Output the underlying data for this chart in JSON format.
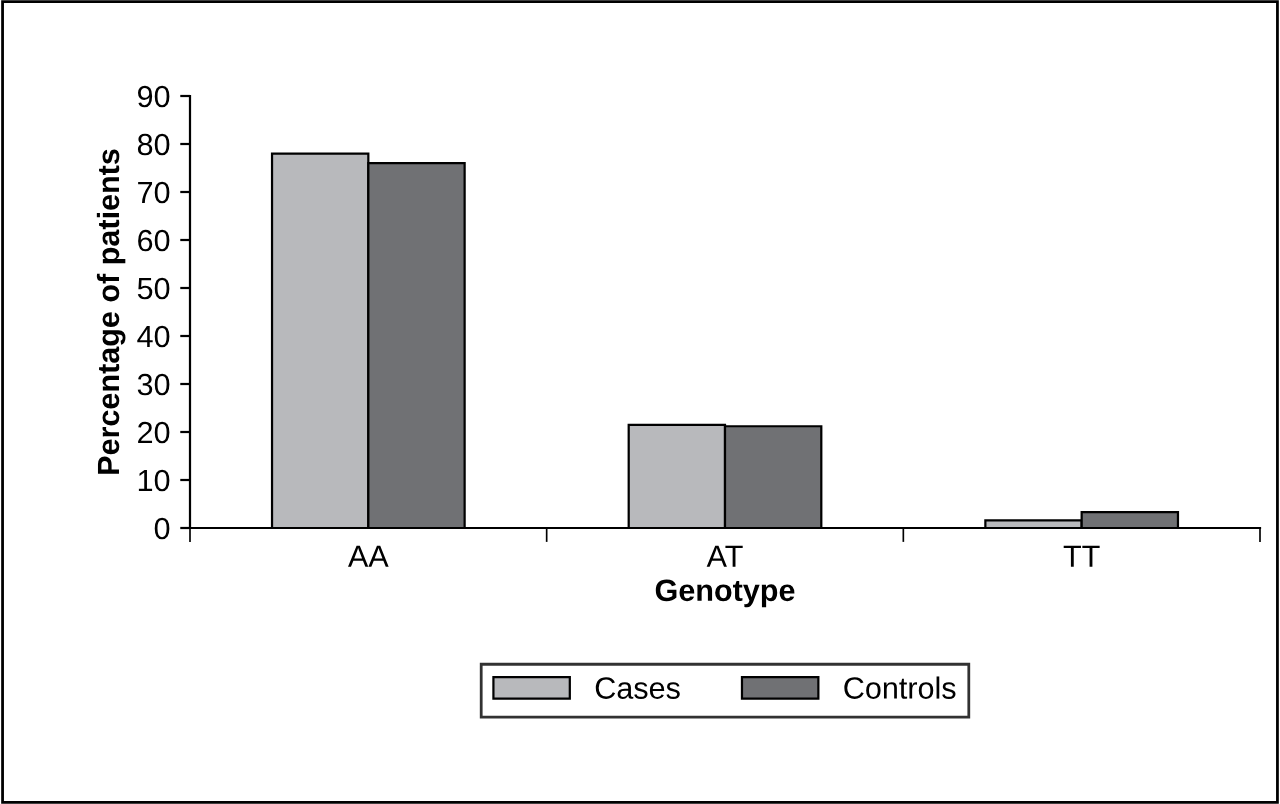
{
  "chart_data": {
    "type": "bar",
    "xlabel": "Genotype",
    "ylabel": "Percentage of patients",
    "categories": [
      "AA",
      "AT",
      "TT"
    ],
    "series": [
      {
        "name": "Cases",
        "color": "#b8b9bc",
        "values": [
          78,
          21.5,
          1.6
        ]
      },
      {
        "name": "Controls",
        "color": "#707174",
        "values": [
          76,
          21.2,
          3.3
        ]
      }
    ],
    "ylim": [
      0,
      90
    ],
    "yticks": [
      0,
      10,
      20,
      30,
      40,
      50,
      60,
      70,
      80,
      90
    ],
    "grid": false,
    "legend": "bottom"
  }
}
